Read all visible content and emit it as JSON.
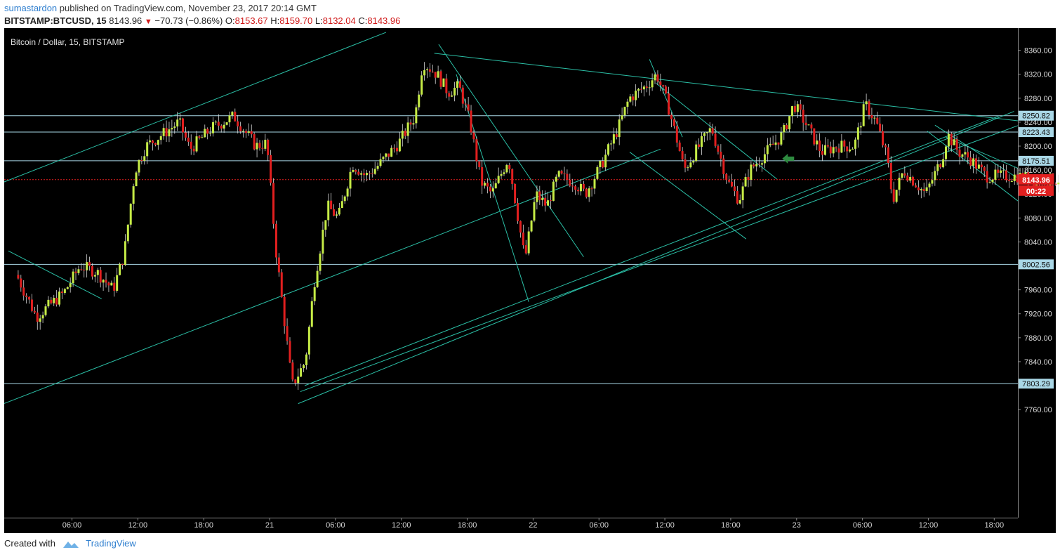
{
  "header": {
    "user": "sumastardon",
    "published_text": " published on TradingView.com, November 23, 2017 20:14 GMT"
  },
  "quote": {
    "symbol": "BITSTAMP:BTCUSD, 15",
    "last": "8143.96",
    "change": "−70.73 (−0.86%)",
    "o_label": "O:",
    "o": "8153.67",
    "h_label": "H:",
    "h": "8159.70",
    "l_label": "L:",
    "l": "8132.04",
    "c_label": "C:",
    "c": "8143.96"
  },
  "footer": {
    "created_with": "Created with",
    "brand": "TradingView"
  },
  "chart_data": {
    "type": "candlestick",
    "title": "Bitcoin / Dollar, 15, BITSTAMP",
    "ylim": [
      7730,
      8380
    ],
    "y_ticks": [
      7760,
      7800,
      7840,
      7880,
      7920,
      7960,
      8000,
      8040,
      8080,
      8120,
      8160,
      8200,
      8240,
      8280,
      8320,
      8360
    ],
    "x_ticks": [
      {
        "label": "06:00",
        "x": 6
      },
      {
        "label": "12:00",
        "x": 12
      },
      {
        "label": "18:00",
        "x": 18
      },
      {
        "label": "21",
        "x": 24
      },
      {
        "label": "06:00",
        "x": 30
      },
      {
        "label": "12:00",
        "x": 36
      },
      {
        "label": "18:00",
        "x": 42
      },
      {
        "label": "22",
        "x": 48
      },
      {
        "label": "06:00",
        "x": 54
      },
      {
        "label": "12:00",
        "x": 60
      },
      {
        "label": "18:00",
        "x": 66
      },
      {
        "label": "23",
        "x": 72
      },
      {
        "label": "06:00",
        "x": 78
      },
      {
        "label": "12:00",
        "x": 84
      },
      {
        "label": "18:00",
        "x": 90
      }
    ],
    "x_range": [
      1.1,
      96.7
    ],
    "up_color": "#c6ec46",
    "down_color": "#e21f1f",
    "line_color": "#2bbfa6",
    "h_levels": [
      {
        "value": 8250.82,
        "label": "8250.82"
      },
      {
        "value": 8223.43,
        "label": "8223.43"
      },
      {
        "value": 8175.51,
        "label": "8175.51"
      },
      {
        "value": 8002.56,
        "label": "8002.56"
      },
      {
        "value": 7803.29,
        "label": "7803.29"
      }
    ],
    "last_price": {
      "value": 8143.96,
      "label": "8143.96",
      "countdown": "00:22"
    },
    "ohlc_keypoints": [
      [
        1.2,
        7985
      ],
      [
        3,
        7915
      ],
      [
        5.5,
        7955
      ],
      [
        7,
        8000
      ],
      [
        8.5,
        7990
      ],
      [
        10,
        7960
      ],
      [
        11,
        8020
      ],
      [
        12,
        8160
      ],
      [
        13,
        8200
      ],
      [
        16,
        8240
      ],
      [
        17,
        8195
      ],
      [
        19,
        8230
      ],
      [
        21,
        8250
      ],
      [
        23,
        8200
      ],
      [
        24,
        8205
      ],
      [
        24.8,
        8030
      ],
      [
        26.3,
        7800
      ],
      [
        27.5,
        7840
      ],
      [
        28.3,
        7970
      ],
      [
        29.5,
        8100
      ],
      [
        30.5,
        8080
      ],
      [
        31.8,
        8170
      ],
      [
        33,
        8150
      ],
      [
        34,
        8165
      ],
      [
        36,
        8205
      ],
      [
        37,
        8235
      ],
      [
        37.5,
        8250
      ],
      [
        38.2,
        8340
      ],
      [
        39.5,
        8320
      ],
      [
        40.5,
        8290
      ],
      [
        41.5,
        8300
      ],
      [
        42.5,
        8240
      ],
      [
        43.5,
        8140
      ],
      [
        44.5,
        8120
      ],
      [
        46,
        8180
      ],
      [
        47.5,
        8010
      ],
      [
        48.5,
        8120
      ],
      [
        49.5,
        8100
      ],
      [
        50.5,
        8150
      ],
      [
        52,
        8140
      ],
      [
        53,
        8120
      ],
      [
        54.5,
        8170
      ],
      [
        56,
        8230
      ],
      [
        57,
        8280
      ],
      [
        58.5,
        8300
      ],
      [
        59.5,
        8320
      ],
      [
        60.5,
        8270
      ],
      [
        61.5,
        8200
      ],
      [
        62,
        8160
      ],
      [
        63,
        8190
      ],
      [
        64.5,
        8230
      ],
      [
        66,
        8140
      ],
      [
        67,
        8110
      ],
      [
        68,
        8160
      ],
      [
        69.5,
        8190
      ],
      [
        71,
        8220
      ],
      [
        72,
        8270
      ],
      [
        73,
        8240
      ],
      [
        74.5,
        8190
      ],
      [
        76,
        8200
      ],
      [
        77.5,
        8200
      ],
      [
        78.5,
        8270
      ],
      [
        79.5,
        8240
      ],
      [
        80.5,
        8180
      ],
      [
        81,
        8110
      ],
      [
        82,
        8160
      ],
      [
        83,
        8140
      ],
      [
        84,
        8120
      ],
      [
        85.5,
        8180
      ],
      [
        86,
        8220
      ],
      [
        87,
        8190
      ],
      [
        88,
        8180
      ],
      [
        89.5,
        8150
      ],
      [
        91,
        8150
      ],
      [
        92.5,
        8150
      ],
      [
        93.9,
        8144
      ]
    ],
    "trend_lines": [
      {
        "p1": [
          -0.2,
          8140
        ],
        "p2": [
          34.6,
          8390
        ]
      },
      {
        "p1": [
          -0.2,
          7770
        ],
        "p2": [
          59.6,
          8195
        ]
      },
      {
        "p1": [
          26.6,
          7770
        ],
        "p2": [
          91.8,
          8258
        ]
      },
      {
        "p1": [
          26.8,
          7790
        ],
        "p2": [
          93.0,
          8240
        ]
      },
      {
        "p1": [
          27.2,
          7800
        ],
        "p2": [
          90.4,
          8250
        ]
      },
      {
        "p1": [
          39.0,
          8355
        ],
        "p2": [
          95.6,
          8235
        ]
      },
      {
        "p1": [
          0.2,
          8025
        ],
        "p2": [
          8.7,
          7945
        ]
      },
      {
        "p1": [
          39.4,
          8370
        ],
        "p2": [
          52.6,
          8015
        ]
      },
      {
        "p1": [
          41.0,
          8320
        ],
        "p2": [
          47.6,
          7940
        ]
      },
      {
        "p1": [
          56.8,
          8190
        ],
        "p2": [
          67.4,
          8045
        ]
      },
      {
        "p1": [
          58.6,
          8345
        ],
        "p2": [
          61.6,
          8215
        ]
      },
      {
        "p1": [
          59.2,
          8305
        ],
        "p2": [
          70.2,
          8145
        ]
      },
      {
        "p1": [
          83.9,
          8225
        ],
        "p2": [
          92.4,
          8105
        ]
      },
      {
        "p1": [
          84.6,
          8235
        ],
        "p2": [
          94.4,
          8120
        ]
      },
      {
        "p1": [
          85.6,
          8215
        ],
        "p2": [
          93.8,
          8150
        ]
      }
    ],
    "annotations": [
      {
        "type": "arrow-left",
        "x": 71.2,
        "y": 8179,
        "color": "#2e8b40"
      }
    ]
  }
}
